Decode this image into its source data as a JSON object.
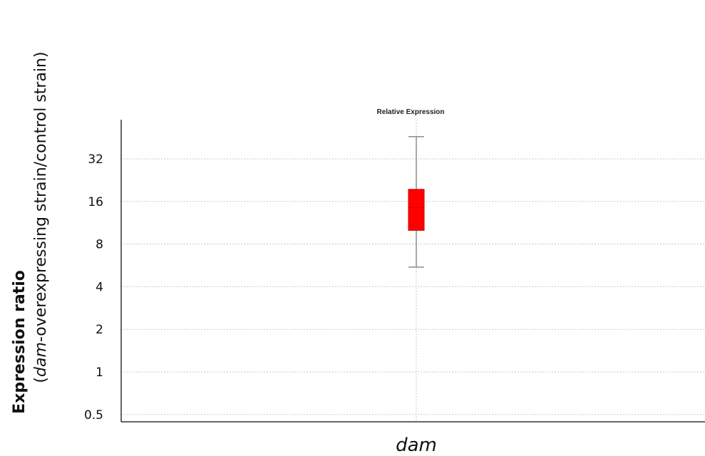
{
  "chart_data": {
    "type": "box",
    "title": "Relative Expression",
    "categories": [
      "dam"
    ],
    "ylabel_bold": "Expression ratio",
    "ylabel_open": "(",
    "ylabel_italic": "dam",
    "ylabel_rest": "-overexpressing strain/control strain)",
    "yscale": "log2",
    "ylim": [
      0.45,
      64
    ],
    "yticks": [
      0.5,
      1,
      2,
      4,
      8,
      16,
      32
    ],
    "ytick_labels": [
      "0.5",
      "1",
      "2",
      "4",
      "8",
      "16",
      "32"
    ],
    "grid": true,
    "series": [
      {
        "category": "dam",
        "whisker_low": 5.5,
        "q1": 10,
        "median": 14.5,
        "q3": 19.5,
        "whisker_high": 46
      }
    ],
    "colors": {
      "box_fill": "#ff0000",
      "box_stroke": "#cc0000",
      "whisker": "#8c8c8c",
      "grid": "#c8c8c8",
      "axis": "#333333"
    }
  }
}
